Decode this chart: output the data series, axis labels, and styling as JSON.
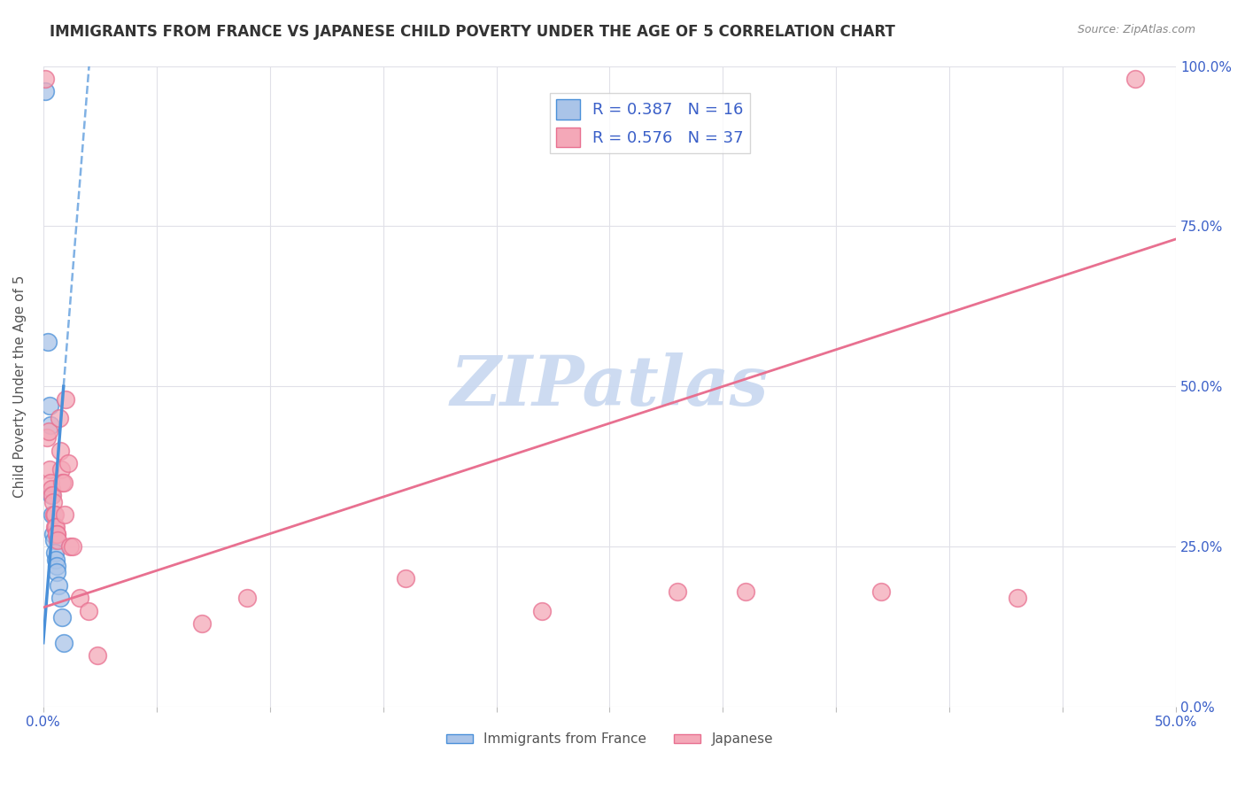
{
  "title": "IMMIGRANTS FROM FRANCE VS JAPANESE CHILD POVERTY UNDER THE AGE OF 5 CORRELATION CHART",
  "source": "Source: ZipAtlas.com",
  "xlabel": "",
  "ylabel": "Child Poverty Under the Age of 5",
  "xlim": [
    0,
    0.5
  ],
  "ylim": [
    0,
    1.0
  ],
  "xticks": [
    0.0,
    0.05,
    0.1,
    0.15,
    0.2,
    0.25,
    0.3,
    0.35,
    0.4,
    0.45,
    0.5
  ],
  "yticks": [
    0.0,
    0.25,
    0.5,
    0.75,
    1.0
  ],
  "blue_R": 0.387,
  "blue_N": 16,
  "pink_R": 0.576,
  "pink_N": 37,
  "blue_color": "#aac4e8",
  "pink_color": "#f4a8b8",
  "blue_line_color": "#4a90d9",
  "pink_line_color": "#e87090",
  "blue_scatter": [
    [
      0.0008,
      0.96
    ],
    [
      0.0022,
      0.57
    ],
    [
      0.003,
      0.47
    ],
    [
      0.0033,
      0.44
    ],
    [
      0.0038,
      0.33
    ],
    [
      0.0042,
      0.3
    ],
    [
      0.0045,
      0.27
    ],
    [
      0.0048,
      0.26
    ],
    [
      0.005,
      0.24
    ],
    [
      0.0055,
      0.23
    ],
    [
      0.0058,
      0.22
    ],
    [
      0.006,
      0.21
    ],
    [
      0.0068,
      0.19
    ],
    [
      0.0075,
      0.17
    ],
    [
      0.0082,
      0.14
    ],
    [
      0.009,
      0.1
    ]
  ],
  "pink_scatter": [
    [
      0.0008,
      0.98
    ],
    [
      0.0018,
      0.42
    ],
    [
      0.0025,
      0.43
    ],
    [
      0.003,
      0.37
    ],
    [
      0.0032,
      0.35
    ],
    [
      0.0038,
      0.34
    ],
    [
      0.004,
      0.33
    ],
    [
      0.0043,
      0.32
    ],
    [
      0.0046,
      0.3
    ],
    [
      0.005,
      0.3
    ],
    [
      0.0052,
      0.28
    ],
    [
      0.0055,
      0.28
    ],
    [
      0.0058,
      0.27
    ],
    [
      0.006,
      0.27
    ],
    [
      0.0065,
      0.26
    ],
    [
      0.007,
      0.45
    ],
    [
      0.0075,
      0.4
    ],
    [
      0.008,
      0.37
    ],
    [
      0.0085,
      0.35
    ],
    [
      0.009,
      0.35
    ],
    [
      0.0095,
      0.3
    ],
    [
      0.01,
      0.48
    ],
    [
      0.011,
      0.38
    ],
    [
      0.012,
      0.25
    ],
    [
      0.013,
      0.25
    ],
    [
      0.016,
      0.17
    ],
    [
      0.02,
      0.15
    ],
    [
      0.024,
      0.08
    ],
    [
      0.07,
      0.13
    ],
    [
      0.09,
      0.17
    ],
    [
      0.16,
      0.2
    ],
    [
      0.22,
      0.15
    ],
    [
      0.28,
      0.18
    ],
    [
      0.31,
      0.18
    ],
    [
      0.37,
      0.18
    ],
    [
      0.43,
      0.17
    ],
    [
      0.482,
      0.98
    ]
  ],
  "blue_trend_x": [
    0.0,
    0.02
  ],
  "pink_trend_x": [
    0.0,
    0.5
  ],
  "blue_trend_y_start": 0.155,
  "blue_trend_slope": 90.0,
  "pink_trend_y_start": 0.155,
  "pink_trend_slope": 1.3,
  "watermark": "ZIPatlas",
  "watermark_color": "#c8d8f0",
  "background_color": "#ffffff",
  "grid_color": "#e0e0e8"
}
